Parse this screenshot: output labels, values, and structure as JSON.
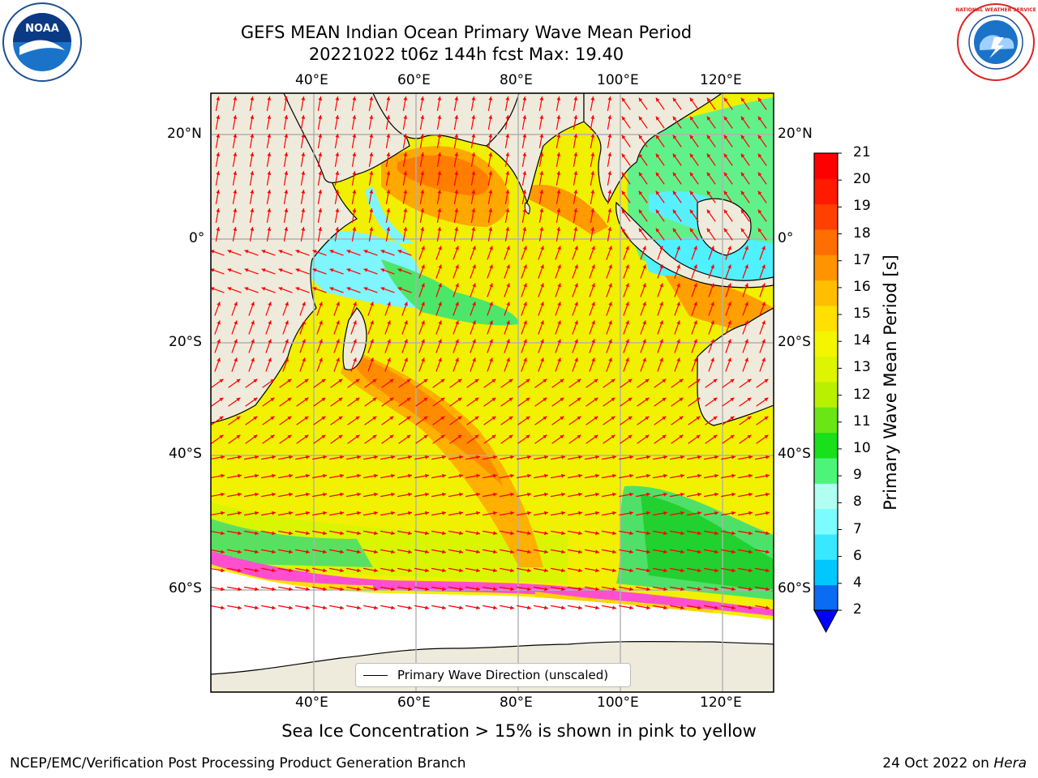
{
  "title": {
    "line1": "GEFS MEAN Indian Ocean Primary Wave Mean Period",
    "line2": "20221022 t06z 144h fcst   Max: 19.40"
  },
  "map": {
    "lon_labels": [
      "40°E",
      "60°E",
      "80°E",
      "100°E",
      "120°E"
    ],
    "lat_labels": [
      "20°N",
      "0°",
      "20°S",
      "40°S",
      "60°S"
    ],
    "legend_label": "Primary Wave Direction (unscaled)",
    "land_color": "#efebdc",
    "arrow_color": "#ff0000",
    "grid_color": "#b0b0b0"
  },
  "colorbar": {
    "label": "Primary Wave Mean Period [s]",
    "ticks": [
      "2",
      "4",
      "6",
      "7",
      "8",
      "9",
      "10",
      "11",
      "12",
      "13",
      "14",
      "15",
      "16",
      "17",
      "18",
      "19",
      "20",
      "21"
    ],
    "colors": [
      "#0a6cf2",
      "#00c8ff",
      "#38e8ff",
      "#7dfcff",
      "#b0fff0",
      "#4cf57a",
      "#18e01a",
      "#6ae614",
      "#b8f000",
      "#ddf500",
      "#f5f500",
      "#ffe000",
      "#ffbe00",
      "#ff9400",
      "#ff6e00",
      "#ff4000",
      "#ff1a00",
      "#ff0000"
    ],
    "extend_color": "#0000ff"
  },
  "note": "Sea Ice Concentration > 15% is shown in pink to yellow",
  "footer": {
    "left": "NCEP/EMC/Verification Post Processing Product Generation Branch",
    "right_prefix": "24 Oct 2022 on ",
    "right_host": "Hera"
  },
  "logos": {
    "noaa_text": "NOAA",
    "nws_text": "NATIONAL WEATHER SERVICE"
  }
}
